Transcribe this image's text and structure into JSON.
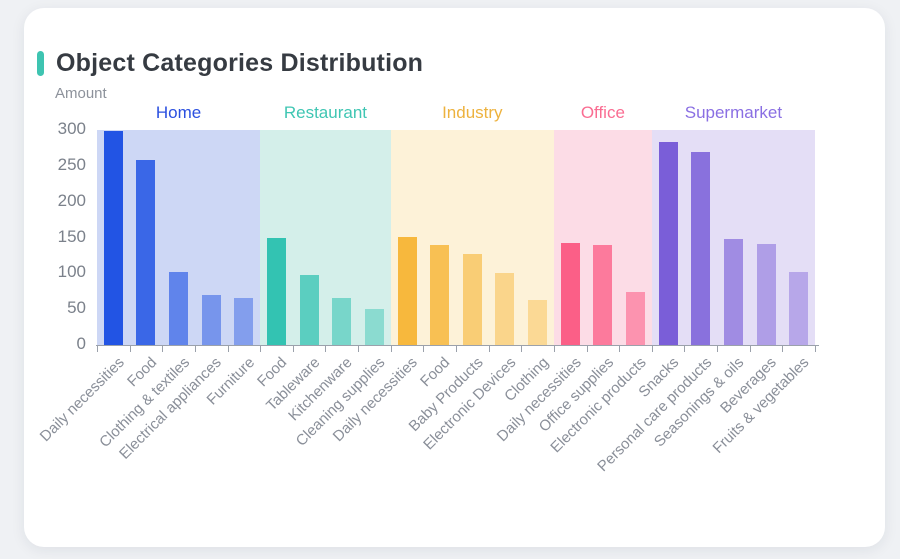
{
  "window": {
    "background": "#eff1f4"
  },
  "card": {
    "background": "#ffffff"
  },
  "header": {
    "title": "Object Categories Distribution",
    "accent_color": "#3ec4b1",
    "title_color": "#363b42"
  },
  "chart_data": {
    "type": "bar",
    "title": "Object Categories Distribution",
    "xlabel": "",
    "ylabel": "Amount",
    "ylim": [
      0,
      300
    ],
    "yticks": [
      0,
      50,
      100,
      150,
      200,
      250,
      300
    ],
    "grid": false,
    "legend_position": "group-labels-above-bands",
    "axis_line_color": "#9ba1ab",
    "tick_label_color": "#8a8f99",
    "groups": [
      {
        "name": "Home",
        "bar_color": "#2254e4",
        "band_color": "#cdd7f5",
        "label_color": "#2b50e0",
        "categories": [
          "Daily necessities",
          "Food",
          "Clothing & textiles",
          "Electrical appliances",
          "Furniture"
        ],
        "values": [
          298,
          258,
          102,
          70,
          65
        ]
      },
      {
        "name": "Restaurant",
        "bar_color": "#33c3b2",
        "band_color": "#d4efea",
        "label_color": "#3fc6b3",
        "categories": [
          "Food",
          "Tableware",
          "Kitchenware",
          "Cleaning supplies"
        ],
        "values": [
          149,
          97,
          65,
          50
        ]
      },
      {
        "name": "Industry",
        "bar_color": "#f7b83d",
        "band_color": "#fdf2d8",
        "label_color": "#edb23e",
        "categories": [
          "Daily necessities",
          "Food",
          "Baby Products",
          "Electronic Devices",
          "Clothing"
        ],
        "values": [
          151,
          140,
          127,
          100,
          63
        ]
      },
      {
        "name": "Office",
        "bar_color": "#fb5f87",
        "band_color": "#fcdce6",
        "label_color": "#fa6d92",
        "categories": [
          "Daily necessities",
          "Office supplies",
          "Electronic products"
        ],
        "values": [
          143,
          139,
          74
        ]
      },
      {
        "name": "Supermarket",
        "bar_color": "#7a5ed8",
        "band_color": "#e4def6",
        "label_color": "#8a6fe3",
        "categories": [
          "Snacks",
          "Personal care products",
          "Seasonings & oils",
          "Beverages",
          "Fruits & vegetables"
        ],
        "values": [
          283,
          270,
          148,
          141,
          102
        ]
      }
    ]
  }
}
